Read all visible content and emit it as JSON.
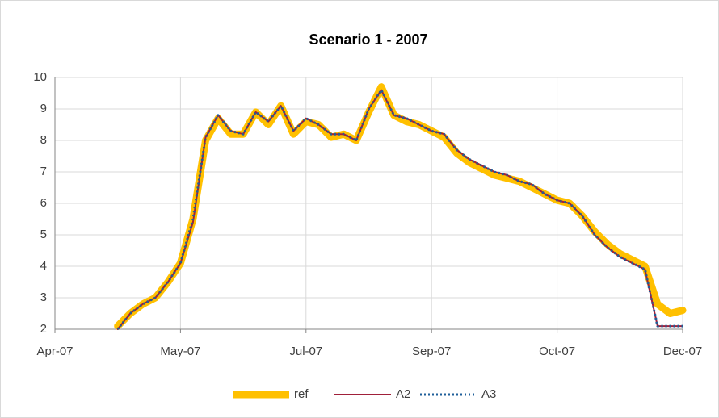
{
  "chart_data": {
    "type": "line",
    "title": "Scenario 1 - 2007",
    "categories": [
      "Apr-07",
      null,
      null,
      null,
      null,
      null,
      null,
      null,
      null,
      null,
      "May-07",
      null,
      null,
      null,
      null,
      null,
      null,
      null,
      null,
      null,
      "Jul-07",
      null,
      null,
      null,
      null,
      null,
      null,
      null,
      null,
      null,
      "Sep-07",
      null,
      null,
      null,
      null,
      null,
      null,
      null,
      null,
      null,
      "Oct-07",
      null,
      null,
      null,
      null,
      null,
      null,
      null,
      null,
      null,
      "Dec-07"
    ],
    "series": [
      {
        "name": "ref",
        "color": "#ffc000",
        "width": 9,
        "dash": "none",
        "values": [
          null,
          null,
          null,
          null,
          null,
          2.1,
          2.5,
          2.8,
          3.0,
          3.5,
          4.1,
          5.5,
          8.0,
          8.7,
          8.2,
          8.2,
          8.9,
          8.5,
          9.1,
          8.2,
          8.6,
          8.5,
          8.1,
          8.2,
          8.0,
          8.9,
          9.7,
          8.8,
          8.6,
          8.5,
          8.3,
          8.1,
          7.6,
          7.3,
          7.1,
          6.9,
          6.8,
          6.7,
          6.5,
          6.3,
          6.1,
          6.0,
          5.6,
          5.1,
          4.7,
          4.4,
          4.2,
          4.0,
          2.8,
          2.5,
          2.6
        ]
      },
      {
        "name": "A2",
        "color": "#a0203a",
        "width": 2,
        "dash": "none",
        "values": [
          null,
          null,
          null,
          null,
          null,
          2.0,
          2.5,
          2.8,
          3.0,
          3.5,
          4.1,
          5.4,
          8.1,
          8.8,
          8.3,
          8.2,
          8.9,
          8.6,
          9.1,
          8.3,
          8.7,
          8.5,
          8.2,
          8.2,
          8.0,
          9.0,
          9.6,
          8.8,
          8.7,
          8.5,
          8.3,
          8.2,
          7.7,
          7.4,
          7.2,
          7.0,
          6.9,
          6.7,
          6.6,
          6.3,
          6.1,
          6.0,
          5.6,
          5.0,
          4.6,
          4.3,
          4.1,
          3.9,
          2.1,
          2.1,
          2.1
        ]
      },
      {
        "name": "A3",
        "color": "#1f5f9a",
        "width": 3,
        "dash": "2 3",
        "values": [
          null,
          null,
          null,
          null,
          null,
          2.0,
          2.5,
          2.8,
          3.0,
          3.5,
          4.1,
          5.5,
          8.1,
          8.8,
          8.3,
          8.2,
          8.9,
          8.6,
          9.1,
          8.3,
          8.7,
          8.5,
          8.2,
          8.2,
          8.0,
          9.0,
          9.6,
          8.8,
          8.7,
          8.5,
          8.3,
          8.2,
          7.7,
          7.4,
          7.2,
          7.0,
          6.9,
          6.7,
          6.6,
          6.3,
          6.1,
          6.0,
          5.6,
          5.0,
          4.6,
          4.3,
          4.1,
          3.9,
          2.1,
          2.1,
          2.1
        ]
      }
    ],
    "ylim": [
      2,
      10
    ],
    "yticks": [
      2,
      3,
      4,
      5,
      6,
      7,
      8,
      9,
      10
    ],
    "grid": true,
    "legend": "bottom"
  }
}
